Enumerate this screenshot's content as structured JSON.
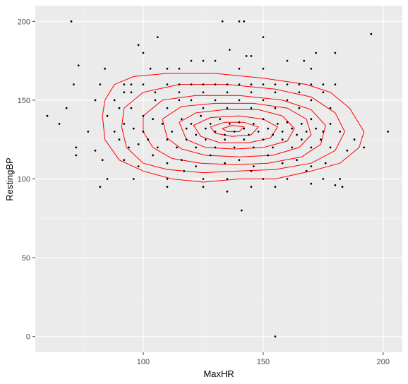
{
  "chart_data": {
    "type": "scatter",
    "xlabel": "MaxHR",
    "ylabel": "RestingBP",
    "xlim": [
      55,
      208
    ],
    "ylim": [
      -10,
      210
    ],
    "x_ticks": [
      100,
      150,
      200
    ],
    "y_ticks": [
      0,
      50,
      100,
      150,
      200
    ],
    "x_tick_labels": [
      "100",
      "150",
      "200"
    ],
    "y_tick_labels": [
      "0",
      "50",
      "100",
      "150",
      "200"
    ],
    "grid": true,
    "legend": "none",
    "colors": {
      "panel": "#ebebeb",
      "grid_major": "#ffffff",
      "grid_minor": "#f5f5f5",
      "points": "#000000",
      "contours": "#ff0000"
    },
    "points": [
      [
        70,
        200
      ],
      [
        133,
        200
      ],
      [
        140,
        200
      ],
      [
        142,
        200
      ],
      [
        150,
        190
      ],
      [
        195,
        192
      ],
      [
        106,
        190
      ],
      [
        98,
        185
      ],
      [
        100,
        180
      ],
      [
        136,
        182
      ],
      [
        143,
        178
      ],
      [
        172,
        180
      ],
      [
        180,
        180
      ],
      [
        73,
        172
      ],
      [
        84,
        170
      ],
      [
        103,
        170
      ],
      [
        120,
        175
      ],
      [
        125,
        175
      ],
      [
        130,
        175
      ],
      [
        145,
        178
      ],
      [
        160,
        175
      ],
      [
        167,
        175
      ],
      [
        110,
        170
      ],
      [
        115,
        170
      ],
      [
        140,
        170
      ],
      [
        150,
        170
      ],
      [
        170,
        170
      ],
      [
        71,
        160
      ],
      [
        82,
        160
      ],
      [
        92,
        160
      ],
      [
        95,
        160
      ],
      [
        100,
        160
      ],
      [
        110,
        160
      ],
      [
        115,
        160
      ],
      [
        120,
        160
      ],
      [
        125,
        160
      ],
      [
        130,
        160
      ],
      [
        135,
        160
      ],
      [
        140,
        160
      ],
      [
        145,
        160
      ],
      [
        150,
        160
      ],
      [
        155,
        160
      ],
      [
        160,
        160
      ],
      [
        165,
        160
      ],
      [
        170,
        160
      ],
      [
        175,
        160
      ],
      [
        180,
        160
      ],
      [
        60,
        140
      ],
      [
        65,
        135
      ],
      [
        68,
        145
      ],
      [
        72,
        120
      ],
      [
        77,
        130
      ],
      [
        80,
        150
      ],
      [
        88,
        150
      ],
      [
        92,
        155
      ],
      [
        95,
        155
      ],
      [
        105,
        155
      ],
      [
        115,
        155
      ],
      [
        125,
        155
      ],
      [
        135,
        155
      ],
      [
        145,
        155
      ],
      [
        155,
        155
      ],
      [
        165,
        155
      ],
      [
        175,
        155
      ],
      [
        85,
        140
      ],
      [
        90,
        145
      ],
      [
        95,
        145
      ],
      [
        100,
        140
      ],
      [
        105,
        150
      ],
      [
        110,
        145
      ],
      [
        115,
        150
      ],
      [
        120,
        150
      ],
      [
        125,
        145
      ],
      [
        130,
        150
      ],
      [
        135,
        145
      ],
      [
        140,
        150
      ],
      [
        145,
        145
      ],
      [
        150,
        150
      ],
      [
        155,
        145
      ],
      [
        160,
        150
      ],
      [
        165,
        145
      ],
      [
        170,
        150
      ],
      [
        178,
        145
      ],
      [
        88,
        130
      ],
      [
        92,
        135
      ],
      [
        96,
        132
      ],
      [
        100,
        130
      ],
      [
        104,
        138
      ],
      [
        108,
        135
      ],
      [
        112,
        130
      ],
      [
        116,
        138
      ],
      [
        118,
        132
      ],
      [
        120,
        135
      ],
      [
        122,
        128
      ],
      [
        124,
        140
      ],
      [
        126,
        132
      ],
      [
        128,
        135
      ],
      [
        130,
        130
      ],
      [
        132,
        138
      ],
      [
        134,
        128
      ],
      [
        136,
        135
      ],
      [
        138,
        130
      ],
      [
        140,
        136
      ],
      [
        142,
        132
      ],
      [
        144,
        128
      ],
      [
        146,
        135
      ],
      [
        148,
        130
      ],
      [
        150,
        138
      ],
      [
        152,
        132
      ],
      [
        154,
        128
      ],
      [
        156,
        135
      ],
      [
        158,
        130
      ],
      [
        160,
        136
      ],
      [
        162,
        132
      ],
      [
        164,
        128
      ],
      [
        166,
        135
      ],
      [
        168,
        130
      ],
      [
        170,
        138
      ],
      [
        172,
        132
      ],
      [
        175,
        130
      ],
      [
        178,
        135
      ],
      [
        182,
        130
      ],
      [
        202,
        130
      ],
      [
        188,
        125
      ],
      [
        192,
        120
      ],
      [
        185,
        118
      ],
      [
        72,
        115
      ],
      [
        80,
        118
      ],
      [
        83,
        112
      ],
      [
        90,
        125
      ],
      [
        94,
        120
      ],
      [
        98,
        122
      ],
      [
        102,
        125
      ],
      [
        106,
        120
      ],
      [
        110,
        125
      ],
      [
        114,
        120
      ],
      [
        118,
        125
      ],
      [
        122,
        120
      ],
      [
        126,
        125
      ],
      [
        130,
        120
      ],
      [
        134,
        125
      ],
      [
        138,
        120
      ],
      [
        142,
        125
      ],
      [
        146,
        120
      ],
      [
        150,
        125
      ],
      [
        154,
        120
      ],
      [
        158,
        125
      ],
      [
        162,
        120
      ],
      [
        166,
        125
      ],
      [
        170,
        120
      ],
      [
        174,
        125
      ],
      [
        178,
        120
      ],
      [
        92,
        112
      ],
      [
        98,
        108
      ],
      [
        104,
        115
      ],
      [
        110,
        110
      ],
      [
        116,
        112
      ],
      [
        122,
        108
      ],
      [
        128,
        115
      ],
      [
        134,
        110
      ],
      [
        140,
        112
      ],
      [
        146,
        108
      ],
      [
        152,
        115
      ],
      [
        158,
        110
      ],
      [
        164,
        112
      ],
      [
        170,
        108
      ],
      [
        176,
        110
      ],
      [
        85,
        100
      ],
      [
        96,
        100
      ],
      [
        110,
        100
      ],
      [
        117,
        105
      ],
      [
        125,
        100
      ],
      [
        135,
        100
      ],
      [
        145,
        105
      ],
      [
        150,
        100
      ],
      [
        160,
        100
      ],
      [
        168,
        105
      ],
      [
        175,
        100
      ],
      [
        182,
        100
      ],
      [
        82,
        95
      ],
      [
        110,
        95
      ],
      [
        125,
        95
      ],
      [
        135,
        92
      ],
      [
        145,
        95
      ],
      [
        155,
        95
      ],
      [
        170,
        97
      ],
      [
        180,
        96
      ],
      [
        183,
        95
      ],
      [
        141,
        80
      ],
      [
        155,
        0
      ]
    ],
    "contours": [
      [
        [
          84,
          150
        ],
        [
          88,
          160
        ],
        [
          96,
          165
        ],
        [
          110,
          167
        ],
        [
          130,
          167
        ],
        [
          150,
          164
        ],
        [
          168,
          160
        ],
        [
          178,
          155
        ],
        [
          186,
          145
        ],
        [
          192,
          130
        ],
        [
          190,
          120
        ],
        [
          182,
          110
        ],
        [
          170,
          105
        ],
        [
          155,
          100
        ],
        [
          140,
          100
        ],
        [
          125,
          98
        ],
        [
          112,
          100
        ],
        [
          100,
          105
        ],
        [
          90,
          112
        ],
        [
          84,
          125
        ],
        [
          83,
          140
        ],
        [
          84,
          150
        ]
      ],
      [
        [
          92,
          145
        ],
        [
          100,
          155
        ],
        [
          115,
          160
        ],
        [
          135,
          160
        ],
        [
          155,
          157
        ],
        [
          170,
          152
        ],
        [
          180,
          142
        ],
        [
          184,
          130
        ],
        [
          180,
          118
        ],
        [
          170,
          110
        ],
        [
          155,
          106
        ],
        [
          140,
          105
        ],
        [
          125,
          104
        ],
        [
          110,
          106
        ],
        [
          100,
          110
        ],
        [
          93,
          120
        ],
        [
          91,
          133
        ],
        [
          92,
          145
        ]
      ],
      [
        [
          100,
          140
        ],
        [
          108,
          150
        ],
        [
          122,
          153
        ],
        [
          140,
          153
        ],
        [
          158,
          150
        ],
        [
          170,
          144
        ],
        [
          176,
          134
        ],
        [
          174,
          122
        ],
        [
          166,
          114
        ],
        [
          152,
          110
        ],
        [
          138,
          109
        ],
        [
          124,
          110
        ],
        [
          112,
          113
        ],
        [
          104,
          120
        ],
        [
          100,
          130
        ],
        [
          100,
          140
        ]
      ],
      [
        [
          108,
          138
        ],
        [
          116,
          146
        ],
        [
          130,
          148
        ],
        [
          146,
          148
        ],
        [
          160,
          145
        ],
        [
          168,
          138
        ],
        [
          170,
          128
        ],
        [
          165,
          120
        ],
        [
          154,
          115
        ],
        [
          140,
          114
        ],
        [
          126,
          115
        ],
        [
          116,
          119
        ],
        [
          110,
          126
        ],
        [
          108,
          138
        ]
      ],
      [
        [
          115,
          136
        ],
        [
          122,
          142
        ],
        [
          134,
          144
        ],
        [
          148,
          144
        ],
        [
          158,
          140
        ],
        [
          163,
          132
        ],
        [
          160,
          124
        ],
        [
          150,
          120
        ],
        [
          138,
          119
        ],
        [
          126,
          120
        ],
        [
          118,
          125
        ],
        [
          115,
          136
        ]
      ],
      [
        [
          121,
          134
        ],
        [
          128,
          139
        ],
        [
          140,
          140
        ],
        [
          150,
          138
        ],
        [
          156,
          133
        ],
        [
          153,
          126
        ],
        [
          144,
          123
        ],
        [
          132,
          123
        ],
        [
          124,
          127
        ],
        [
          121,
          134
        ]
      ],
      [
        [
          128,
          133
        ],
        [
          134,
          136
        ],
        [
          142,
          136
        ],
        [
          148,
          133
        ],
        [
          145,
          128
        ],
        [
          137,
          127
        ],
        [
          130,
          129
        ],
        [
          128,
          133
        ]
      ],
      [
        [
          133,
          132
        ],
        [
          137,
          134
        ],
        [
          142,
          133
        ],
        [
          140,
          130
        ],
        [
          135,
          130
        ],
        [
          133,
          132
        ]
      ]
    ]
  }
}
